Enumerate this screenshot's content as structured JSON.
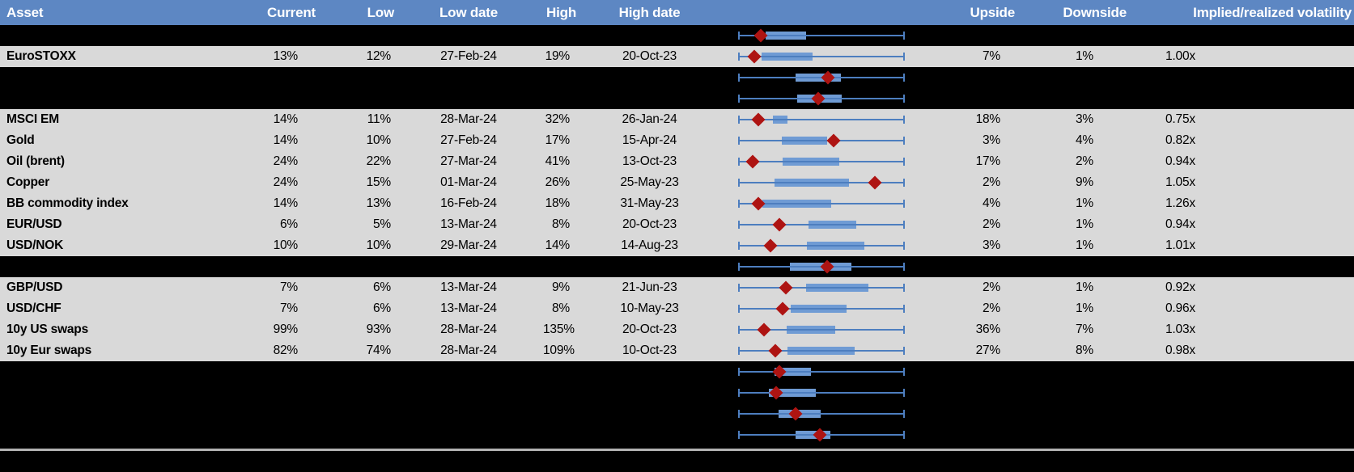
{
  "colors": {
    "header_blue": "#5d87c3",
    "row_gray": "#d9d9d9",
    "box_blue": "#6f9bd4",
    "whisker_blue": "#4d7ebf",
    "diamond_red": "#ae1412",
    "divider_gray": "#b3b3b3"
  },
  "header": {
    "columns": [
      "Asset",
      "Current",
      "Low",
      "Low date",
      "High",
      "High date",
      "",
      "Upside",
      "Downside",
      "Implied/realized volatility"
    ]
  },
  "chart_data": {
    "type": "boxplot",
    "note": "Each row: horizontal whisker spanning normalized 0-1 range (low to high of implied volatility), blue interquartile box and red diamond marking current level. Fractions stored per row in rows[].plot."
  },
  "rows": [
    {
      "label": "",
      "plot": {
        "box": [
          0.162,
          0.407
        ],
        "diamond": 0.132
      }
    },
    {
      "label": "EuroSTOXX",
      "current": "13%",
      "low": "12%",
      "low_date": "27-Feb-24",
      "high": "19%",
      "high_date": "20-Oct-23",
      "upside": "7%",
      "downside": "1%",
      "implied_realized": "1.00x",
      "plot": {
        "box": [
          0.137,
          0.446
        ],
        "diamond": 0.095
      }
    },
    {
      "label": "",
      "plot": {
        "box": [
          0.343,
          0.617
        ],
        "diamond": 0.539
      }
    },
    {
      "label": "",
      "plot": {
        "box": [
          0.353,
          0.622
        ],
        "diamond": 0.48
      }
    },
    {
      "label": "MSCI EM",
      "current": "14%",
      "low": "11%",
      "low_date": "28-Mar-24",
      "high": "32%",
      "high_date": "26-Jan-24",
      "upside": "18%",
      "downside": "3%",
      "implied_realized": "0.75x",
      "plot": {
        "box": [
          0.206,
          0.294
        ],
        "diamond": 0.118
      }
    },
    {
      "label": "Gold",
      "current": "14%",
      "low": "10%",
      "low_date": "27-Feb-24",
      "high": "17%",
      "high_date": "15-Apr-24",
      "upside": "3%",
      "downside": "4%",
      "implied_realized": "0.82x",
      "plot": {
        "box": [
          0.26,
          0.534
        ],
        "diamond": 0.574
      }
    },
    {
      "label": "Oil (brent)",
      "current": "24%",
      "low": "22%",
      "low_date": "27-Mar-24",
      "high": "41%",
      "high_date": "13-Oct-23",
      "upside": "17%",
      "downside": "2%",
      "implied_realized": "0.94x",
      "plot": {
        "box": [
          0.265,
          0.608
        ],
        "diamond": 0.083
      }
    },
    {
      "label": "Copper",
      "current": "24%",
      "low": "15%",
      "low_date": "01-Mar-24",
      "high": "26%",
      "high_date": "25-May-23",
      "upside": "2%",
      "downside": "9%",
      "implied_realized": "1.05x",
      "plot": {
        "box": [
          0.216,
          0.667
        ],
        "diamond": 0.824
      }
    },
    {
      "label": "BB commodity index",
      "current": "14%",
      "low": "13%",
      "low_date": "16-Feb-24",
      "high": "18%",
      "high_date": "31-May-23",
      "upside": "4%",
      "downside": "1%",
      "implied_realized": "1.26x",
      "plot": {
        "box": [
          0.142,
          0.559
        ],
        "diamond": 0.118
      }
    },
    {
      "label": "EUR/USD",
      "current": "6%",
      "low": "5%",
      "low_date": "13-Mar-24",
      "high": "8%",
      "high_date": "20-Oct-23",
      "upside": "2%",
      "downside": "1%",
      "implied_realized": "0.94x",
      "plot": {
        "box": [
          0.422,
          0.711
        ],
        "diamond": 0.245
      }
    },
    {
      "label": "USD/NOK",
      "current": "10%",
      "low": "10%",
      "low_date": "29-Mar-24",
      "high": "14%",
      "high_date": "14-Aug-23",
      "upside": "3%",
      "downside": "1%",
      "implied_realized": "1.01x",
      "plot": {
        "box": [
          0.412,
          0.76
        ],
        "diamond": 0.191
      }
    },
    {
      "label": "",
      "plot": {
        "box": [
          0.309,
          0.681
        ],
        "diamond": 0.534
      }
    },
    {
      "label": "GBP/USD",
      "current": "7%",
      "low": "6%",
      "low_date": "13-Mar-24",
      "high": "9%",
      "high_date": "21-Jun-23",
      "upside": "2%",
      "downside": "1%",
      "implied_realized": "0.92x",
      "plot": {
        "box": [
          0.407,
          0.784
        ],
        "diamond": 0.284
      }
    },
    {
      "label": "USD/CHF",
      "current": "7%",
      "low": "6%",
      "low_date": "13-Mar-24",
      "high": "8%",
      "high_date": "10-May-23",
      "upside": "2%",
      "downside": "1%",
      "implied_realized": "0.96x",
      "plot": {
        "box": [
          0.314,
          0.652
        ],
        "diamond": 0.265
      }
    },
    {
      "label": "10y US swaps",
      "current": "99%",
      "low": "93%",
      "low_date": "28-Mar-24",
      "high": "135%",
      "high_date": "20-Oct-23",
      "upside": "36%",
      "downside": "7%",
      "implied_realized": "1.03x",
      "plot": {
        "box": [
          0.289,
          0.583
        ],
        "diamond": 0.152
      }
    },
    {
      "label": "10y Eur swaps",
      "current": "82%",
      "low": "74%",
      "low_date": "28-Mar-24",
      "high": "109%",
      "high_date": "10-Oct-23",
      "upside": "27%",
      "downside": "8%",
      "implied_realized": "0.98x",
      "plot": {
        "box": [
          0.294,
          0.701
        ],
        "diamond": 0.221
      }
    },
    {
      "label": "",
      "plot": {
        "box": [
          0.216,
          0.436
        ],
        "diamond": 0.245
      }
    },
    {
      "label": "",
      "plot": {
        "box": [
          0.181,
          0.466
        ],
        "diamond": 0.225
      }
    },
    {
      "label": "",
      "plot": {
        "box": [
          0.24,
          0.495
        ],
        "diamond": 0.343
      }
    },
    {
      "label": "",
      "plot": {
        "box": [
          0.343,
          0.554
        ],
        "diamond": 0.49
      }
    }
  ]
}
